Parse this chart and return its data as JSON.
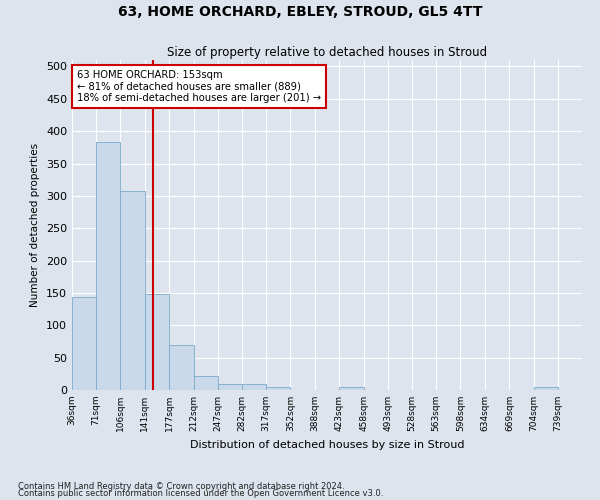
{
  "title": "63, HOME ORCHARD, EBLEY, STROUD, GL5 4TT",
  "subtitle": "Size of property relative to detached houses in Stroud",
  "xlabel": "Distribution of detached houses by size in Stroud",
  "ylabel": "Number of detached properties",
  "footnote1": "Contains HM Land Registry data © Crown copyright and database right 2024.",
  "footnote2": "Contains public sector information licensed under the Open Government Licence v3.0.",
  "annotation_line1": "63 HOME ORCHARD: 153sqm",
  "annotation_line2": "← 81% of detached houses are smaller (889)",
  "annotation_line3": "18% of semi-detached houses are larger (201) →",
  "bar_edges": [
    36,
    71,
    106,
    141,
    177,
    212,
    247,
    282,
    317,
    352,
    388,
    423,
    458,
    493,
    528,
    563,
    598,
    634,
    669,
    704,
    739
  ],
  "bar_values": [
    144,
    383,
    307,
    149,
    69,
    22,
    10,
    10,
    5,
    0,
    0,
    4,
    0,
    0,
    0,
    0,
    0,
    0,
    0,
    4
  ],
  "property_size": 153,
  "bar_color": "#c9d9ea",
  "bar_edge_color": "#7aaaca",
  "red_line_color": "#cc0000",
  "annotation_box_color": "#cc0000",
  "bg_color": "#dde4ed",
  "grid_color": "#ffffff",
  "ylim": [
    0,
    510
  ],
  "yticks": [
    0,
    50,
    100,
    150,
    200,
    250,
    300,
    350,
    400,
    450,
    500
  ]
}
